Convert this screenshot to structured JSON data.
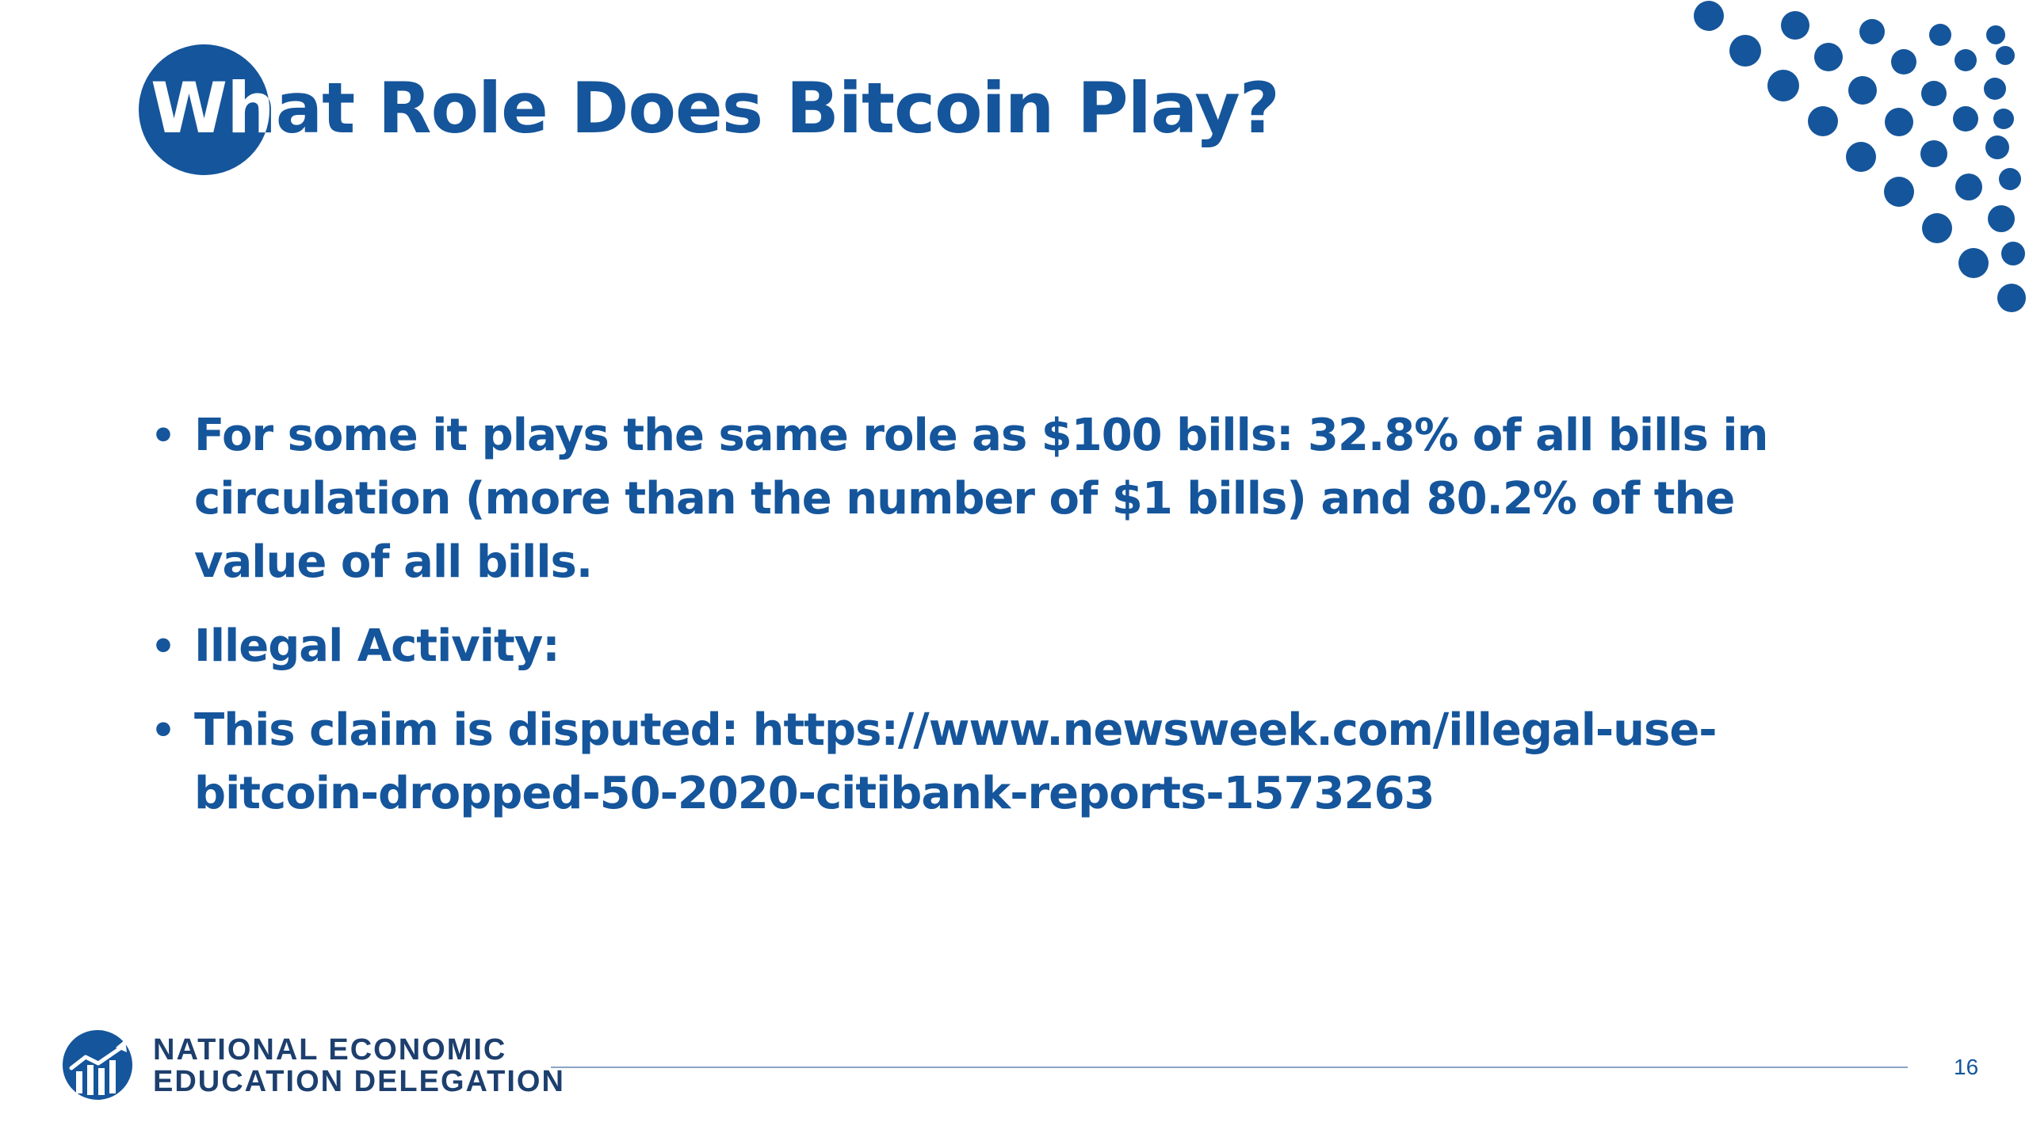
{
  "slide": {
    "title": "What Role Does Bitcoin Play?",
    "bullets": [
      "For some it plays the same role as $100 bills:  32.8% of all bills in circulation (more than the number of $1 bills) and 80.2% of the value of all bills.",
      "Illegal Activity:",
      "This claim is disputed:  https://www.newsweek.com/illegal-use-bitcoin-dropped-50-2020-citibank-reports-1573263"
    ],
    "bullet_glyph": "•"
  },
  "footer": {
    "org_line1": "NATIONAL ECONOMIC",
    "org_line2": "EDUCATION DELEGATION",
    "logo_icon": "need-logo-icon",
    "page_number": "16"
  },
  "colors": {
    "brand_blue": "#15559b",
    "footer_text": "#1d3f6e",
    "rule": "#8aa4c4",
    "background": "#ffffff"
  }
}
